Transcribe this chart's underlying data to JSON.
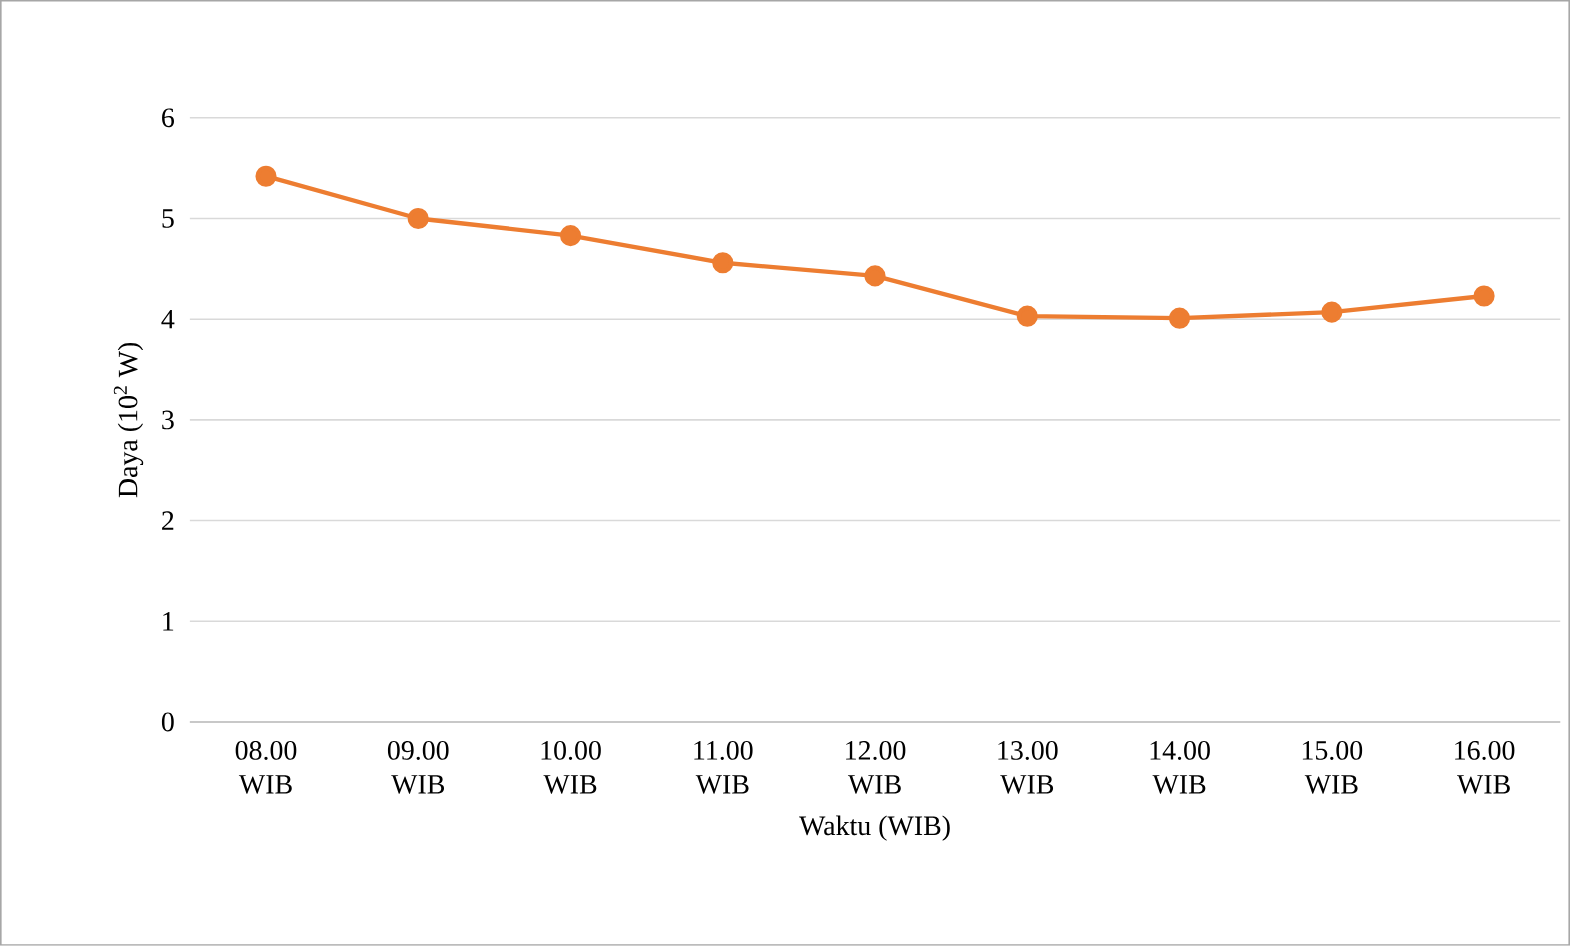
{
  "chart_data": {
    "type": "line",
    "xlabel": "Waktu (WIB)",
    "ylabel": "Daya (10$^{2}$ W)",
    "categories": [
      "08.00 WIB",
      "09.00 WIB",
      "10.00 WIB",
      "11.00 WIB",
      "12.00 WIB",
      "13.00 WIB",
      "14.00 WIB",
      "15.00 WIB",
      "16.00 WIB"
    ],
    "series": [
      {
        "color": "#ed7d31",
        "values": [
          5.42,
          5.0,
          4.83,
          4.56,
          4.43,
          4.03,
          4.01,
          4.07,
          4.23
        ]
      }
    ],
    "ylim": [
      0,
      6
    ],
    "yticks": [
      0,
      1,
      2,
      3,
      4,
      5,
      6
    ],
    "grid": "y",
    "marker": "circle",
    "line_style": "solid"
  }
}
